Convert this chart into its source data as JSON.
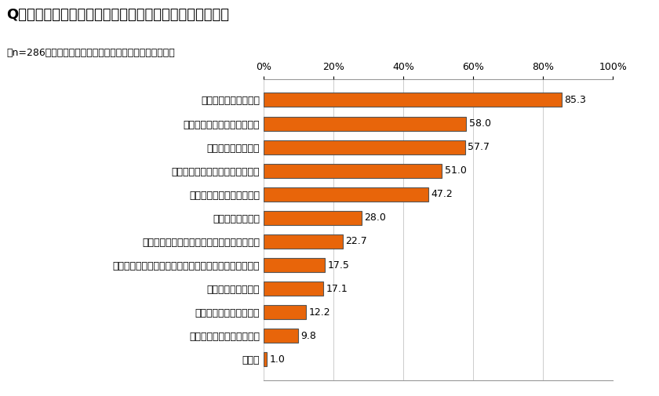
{
  "title": "Q　どんな時に「物忘れ」を実感することが多いですか？",
  "subtitle": "（n=286、複数回答、最近、物忘れが増えたと感じる人）",
  "categories": [
    "その他",
    "最近のことを思い出せない",
    "昔のことを思い出せない",
    "パスワードを忘れる",
    "財布など大事なものを置き忘れたり、持ち忘れたりする",
    "メモを持ち忘れたり、見るのを忘れたりする",
    "探しものが増えた",
    "買い忘れやだぶり買いした",
    "会話の中にアレとかソレが増えた",
    "漢字が思い出せない",
    "何をしようとしたかを忘れる",
    "人の名前が出てこない"
  ],
  "values": [
    1.0,
    9.8,
    12.2,
    17.1,
    17.5,
    22.7,
    28.0,
    47.2,
    51.0,
    57.7,
    58.0,
    85.3
  ],
  "bar_color": "#E8650A",
  "bar_edge_color": "#555555",
  "background_color": "#ffffff",
  "xlim": [
    0,
    100
  ],
  "xticks": [
    0,
    20,
    40,
    60,
    80,
    100
  ],
  "xtick_labels": [
    "0%",
    "20%",
    "40%",
    "60%",
    "80%",
    "100%"
  ],
  "title_fontsize": 13,
  "subtitle_fontsize": 9,
  "label_fontsize": 9,
  "value_fontsize": 9,
  "tick_fontsize": 9
}
